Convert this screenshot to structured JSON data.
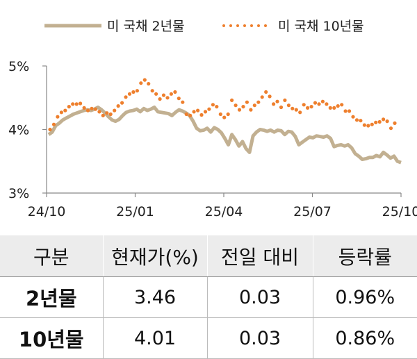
{
  "chart_data": {
    "type": "line",
    "legend": {
      "placement": "top"
    },
    "ylim": [
      3,
      5
    ],
    "yticks": [
      "3%",
      "4%",
      "5%"
    ],
    "xticks": [
      "24/10",
      "25/01",
      "25/04",
      "25/07",
      "25/10"
    ],
    "grid": false,
    "series": [
      {
        "name": "미 국채 2년물",
        "style": "solid",
        "color": "#c2b091",
        "values": [
          3.92,
          3.96,
          4.06,
          4.1,
          4.15,
          4.18,
          4.21,
          4.24,
          4.26,
          4.28,
          4.3,
          4.31,
          4.3,
          4.32,
          4.35,
          4.31,
          4.26,
          4.2,
          4.15,
          4.13,
          4.16,
          4.22,
          4.27,
          4.29,
          4.3,
          4.32,
          4.28,
          4.33,
          4.3,
          4.32,
          4.35,
          4.28,
          4.27,
          4.26,
          4.25,
          4.22,
          4.27,
          4.31,
          4.29,
          4.26,
          4.22,
          4.13,
          4.02,
          3.98,
          3.99,
          4.02,
          3.96,
          4.03,
          4.0,
          3.95,
          3.86,
          3.76,
          3.92,
          3.84,
          3.74,
          3.81,
          3.7,
          3.64,
          3.9,
          3.96,
          4.0,
          3.99,
          3.97,
          3.99,
          3.96,
          3.99,
          3.98,
          3.92,
          3.97,
          3.96,
          3.89,
          3.76,
          3.8,
          3.84,
          3.88,
          3.87,
          3.9,
          3.89,
          3.88,
          3.9,
          3.86,
          3.73,
          3.75,
          3.76,
          3.74,
          3.76,
          3.71,
          3.62,
          3.58,
          3.53,
          3.54,
          3.56,
          3.56,
          3.59,
          3.57,
          3.64,
          3.6,
          3.55,
          3.58,
          3.5,
          3.48
        ]
      },
      {
        "name": "미 국채 10년물",
        "style": "dotted",
        "color": "#ee7f2d",
        "values": [
          4.0,
          4.08,
          4.2,
          4.27,
          4.3,
          4.36,
          4.4,
          4.4,
          4.41,
          4.34,
          4.3,
          4.33,
          4.32,
          4.28,
          4.22,
          4.26,
          4.24,
          4.3,
          4.37,
          4.42,
          4.51,
          4.56,
          4.59,
          4.61,
          4.73,
          4.78,
          4.72,
          4.61,
          4.56,
          4.48,
          4.54,
          4.5,
          4.56,
          4.59,
          4.49,
          4.43,
          4.24,
          4.22,
          4.28,
          4.3,
          4.23,
          4.28,
          4.32,
          4.39,
          4.36,
          4.24,
          4.19,
          4.24,
          4.46,
          4.38,
          4.31,
          4.36,
          4.43,
          4.31,
          4.38,
          4.43,
          4.51,
          4.59,
          4.52,
          4.4,
          4.44,
          4.35,
          4.46,
          4.38,
          4.33,
          4.31,
          4.27,
          4.39,
          4.34,
          4.36,
          4.42,
          4.4,
          4.44,
          4.4,
          4.34,
          4.34,
          4.37,
          4.39,
          4.29,
          4.29,
          4.2,
          4.15,
          4.14,
          4.07,
          4.06,
          4.08,
          4.11,
          4.12,
          4.16,
          4.13,
          4.02,
          4.1
        ]
      }
    ]
  },
  "table": {
    "headers": [
      "구분",
      "현재가(%)",
      "전일 대비",
      "등락률"
    ],
    "rows": [
      [
        "2년물",
        "3.46",
        "0.03",
        "0.96%"
      ],
      [
        "10년물",
        "4.01",
        "0.03",
        "0.86%"
      ]
    ]
  }
}
